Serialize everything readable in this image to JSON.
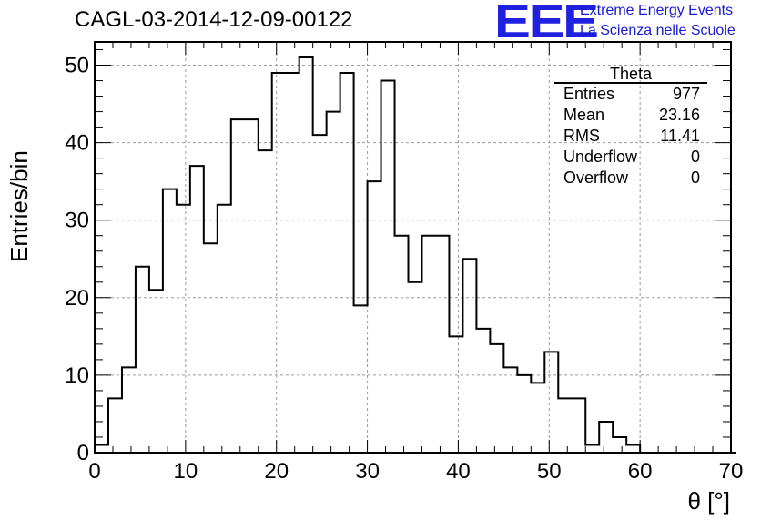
{
  "header": {
    "title": "CAGL-03-2014-12-09-00122"
  },
  "logo": {
    "letters": "EEE",
    "line1": "Extreme Energy Events",
    "line2": "La Scienza nelle Scuole",
    "color": "#2020e0"
  },
  "stats_box": {
    "title": "Theta",
    "rows": [
      {
        "label": "Entries",
        "value": "977"
      },
      {
        "label": "Mean",
        "value": "23.16"
      },
      {
        "label": "RMS",
        "value": "11.41"
      },
      {
        "label": "Underflow",
        "value": "0"
      },
      {
        "label": "Overflow",
        "value": "0"
      }
    ]
  },
  "chart_data": {
    "type": "bar",
    "subtype": "step-histogram",
    "title": "CAGL-03-2014-12-09-00122",
    "xlabel": "θ [°]",
    "ylabel": "Entries/bin",
    "xlim": [
      0,
      70
    ],
    "ylim": [
      0,
      53
    ],
    "bin_width": 1.5,
    "xticks": [
      0,
      10,
      20,
      30,
      40,
      50,
      60,
      70
    ],
    "yticks": [
      0,
      10,
      20,
      30,
      40,
      50
    ],
    "grid": true,
    "legend": "top-right",
    "line_color": "#000000",
    "values": [
      1,
      7,
      11,
      24,
      21,
      34,
      32,
      37,
      27,
      32,
      43,
      43,
      39,
      49,
      49,
      51,
      41,
      44,
      49,
      19,
      35,
      48,
      28,
      22,
      28,
      28,
      15,
      25,
      16,
      14,
      11,
      10,
      9,
      13,
      7,
      7,
      1,
      4,
      2,
      1,
      0,
      0,
      0,
      0,
      0,
      0,
      0
    ]
  }
}
